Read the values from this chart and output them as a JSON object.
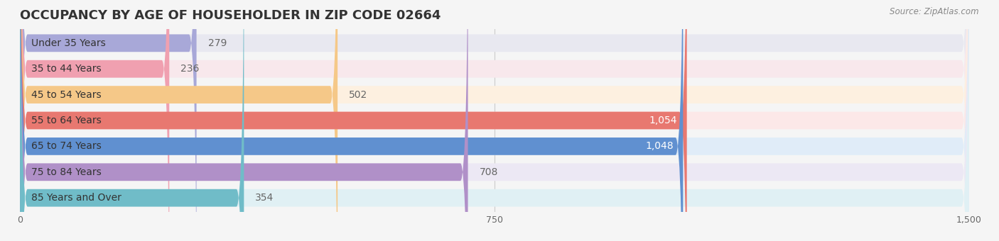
{
  "title": "OCCUPANCY BY AGE OF HOUSEHOLDER IN ZIP CODE 02664",
  "source": "Source: ZipAtlas.com",
  "categories": [
    "Under 35 Years",
    "35 to 44 Years",
    "45 to 54 Years",
    "55 to 64 Years",
    "65 to 74 Years",
    "75 to 84 Years",
    "85 Years and Over"
  ],
  "values": [
    279,
    236,
    502,
    1054,
    1048,
    708,
    354
  ],
  "bar_colors": [
    "#a8a8d8",
    "#f0a0b0",
    "#f5c888",
    "#e87870",
    "#6090d0",
    "#b090c8",
    "#70bcc8"
  ],
  "bar_bg_colors": [
    "#e8e8f0",
    "#f8e8ec",
    "#fdf0e0",
    "#fce8e8",
    "#e0ecf8",
    "#ece8f4",
    "#e0f0f4"
  ],
  "xlim": [
    0,
    1500
  ],
  "xticks": [
    0,
    750,
    1500
  ],
  "background_color": "#f5f5f5",
  "title_fontsize": 13,
  "label_fontsize": 10,
  "value_fontsize": 10,
  "value_threshold": 800
}
